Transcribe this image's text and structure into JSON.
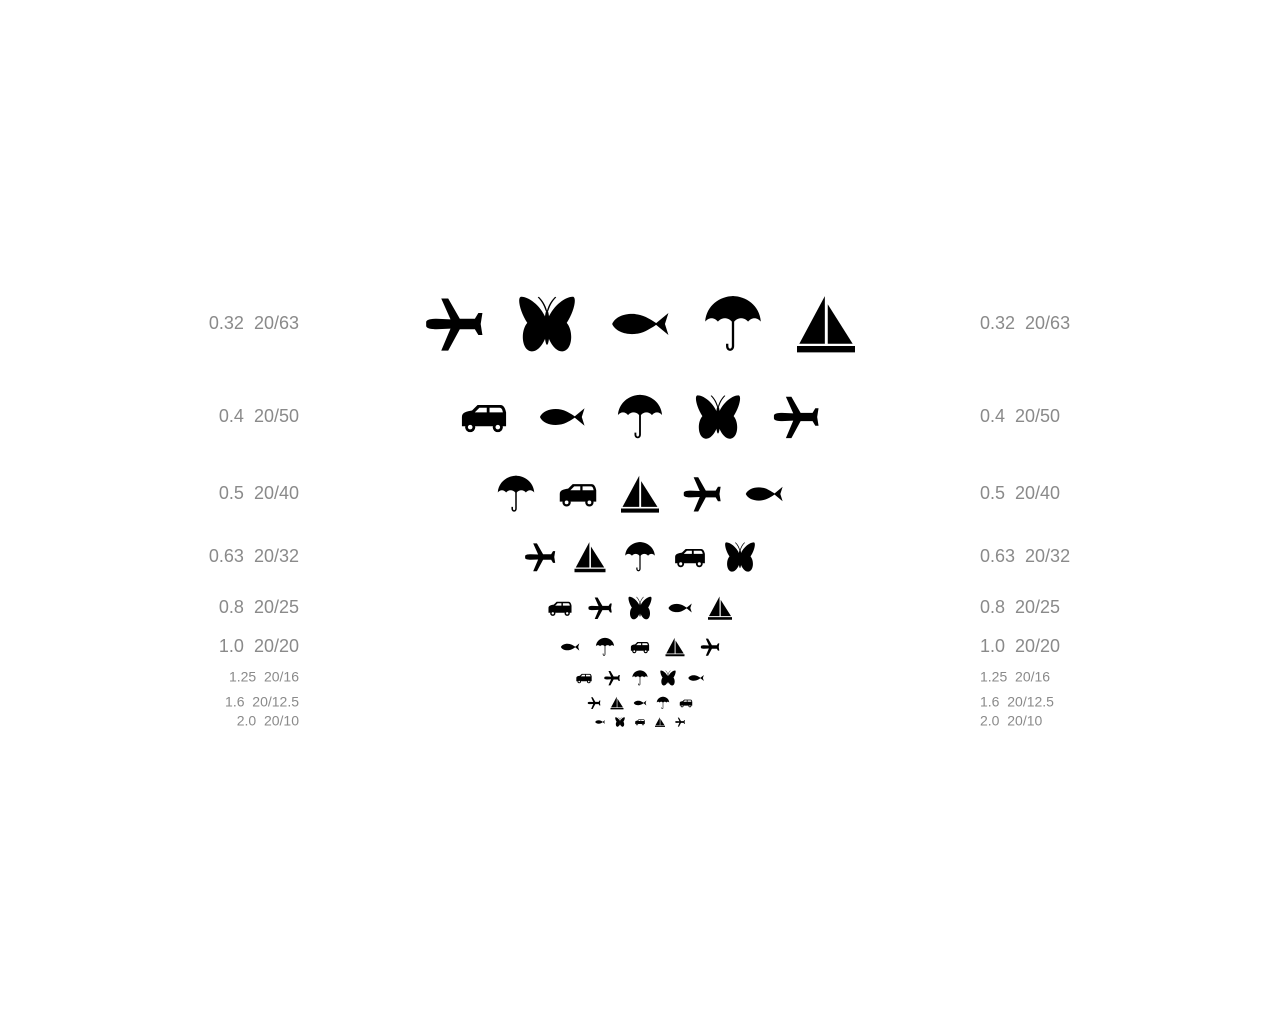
{
  "colors": {
    "background": "#ffffff",
    "symbol": "#000000",
    "label": "#8a8a8a"
  },
  "rows": [
    {
      "decimal": "0.32",
      "snellen": "20/63",
      "symbols": [
        "airplane-icon",
        "butterfly-icon",
        "fish-icon",
        "umbrella-icon",
        "sailboat-icon"
      ]
    },
    {
      "decimal": "0.4",
      "snellen": "20/50",
      "symbols": [
        "car-icon",
        "fish-icon",
        "umbrella-icon",
        "butterfly-icon",
        "airplane-icon"
      ]
    },
    {
      "decimal": "0.5",
      "snellen": "20/40",
      "symbols": [
        "umbrella-icon",
        "car-icon",
        "sailboat-icon",
        "airplane-icon",
        "fish-icon"
      ]
    },
    {
      "decimal": "0.63",
      "snellen": "20/32",
      "symbols": [
        "airplane-icon",
        "sailboat-icon",
        "umbrella-icon",
        "car-icon",
        "butterfly-icon"
      ]
    },
    {
      "decimal": "0.8",
      "snellen": "20/25",
      "symbols": [
        "car-icon",
        "airplane-icon",
        "butterfly-icon",
        "fish-icon",
        "sailboat-icon"
      ]
    },
    {
      "decimal": "1.0",
      "snellen": "20/20",
      "symbols": [
        "fish-icon",
        "umbrella-icon",
        "car-icon",
        "sailboat-icon",
        "airplane-icon"
      ]
    },
    {
      "decimal": "1.25",
      "snellen": "20/16",
      "symbols": [
        "car-icon",
        "airplane-icon",
        "umbrella-icon",
        "butterfly-icon",
        "fish-icon"
      ]
    },
    {
      "decimal": "1.6",
      "snellen": "20/12.5",
      "symbols": [
        "airplane-icon",
        "sailboat-icon",
        "fish-icon",
        "umbrella-icon",
        "car-icon"
      ]
    },
    {
      "decimal": "2.0",
      "snellen": "20/10",
      "symbols": [
        "fish-icon",
        "butterfly-icon",
        "car-icon",
        "sailboat-icon",
        "airplane-icon"
      ]
    }
  ]
}
